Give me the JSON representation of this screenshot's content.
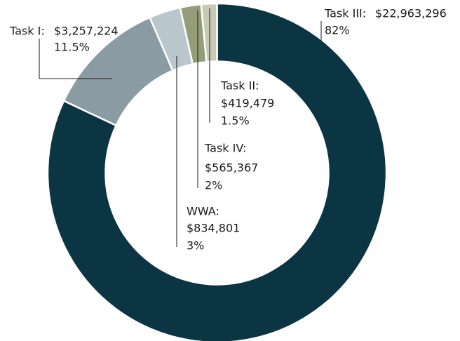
{
  "chart_data": {
    "type": "donut",
    "categories": [
      "Task III:",
      "Task I:",
      "WWA:",
      "Task IV:",
      "Task II:"
    ],
    "values": [
      82,
      11.5,
      3,
      2,
      1.5
    ],
    "value_labels": [
      "82%",
      "11.5%",
      "3%",
      "2%",
      "1.5%"
    ],
    "amounts": [
      "$22,963,296",
      "$3,257,224",
      "$834,801",
      "$565,367",
      "$419,479"
    ],
    "colors": [
      "#0b3542",
      "#8a9ba3",
      "#b9c6cc",
      "#959c78",
      "#c8c9b2"
    ]
  }
}
